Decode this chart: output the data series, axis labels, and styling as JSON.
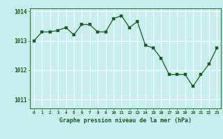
{
  "x": [
    0,
    1,
    2,
    3,
    4,
    5,
    6,
    7,
    8,
    9,
    10,
    11,
    12,
    13,
    14,
    15,
    16,
    17,
    18,
    19,
    20,
    21,
    22,
    23
  ],
  "y": [
    1013.0,
    1013.3,
    1013.3,
    1013.35,
    1013.45,
    1013.2,
    1013.55,
    1013.55,
    1013.3,
    1013.3,
    1013.75,
    1013.85,
    1013.45,
    1013.65,
    1012.85,
    1012.75,
    1012.4,
    1011.85,
    1011.85,
    1011.85,
    1011.45,
    1011.85,
    1012.2,
    1012.75
  ],
  "line_color": "#1a5c1a",
  "marker_color": "#1a5c1a",
  "bg_color": "#c8eef0",
  "grid_color": "#ffffff",
  "border_color": "#2d7a2d",
  "xlabel": "Graphe pression niveau de la mer (hPa)",
  "xlabel_color": "#1a5c1a",
  "ylabel_ticks": [
    1011,
    1012,
    1013,
    1014
  ],
  "ylim": [
    1010.7,
    1014.1
  ],
  "xlim": [
    -0.5,
    23.5
  ],
  "xtick_labels": [
    "0",
    "1",
    "2",
    "3",
    "4",
    "5",
    "6",
    "7",
    "8",
    "9",
    "10",
    "11",
    "12",
    "13",
    "14",
    "15",
    "16",
    "17",
    "18",
    "19",
    "20",
    "21",
    "22",
    "23"
  ]
}
